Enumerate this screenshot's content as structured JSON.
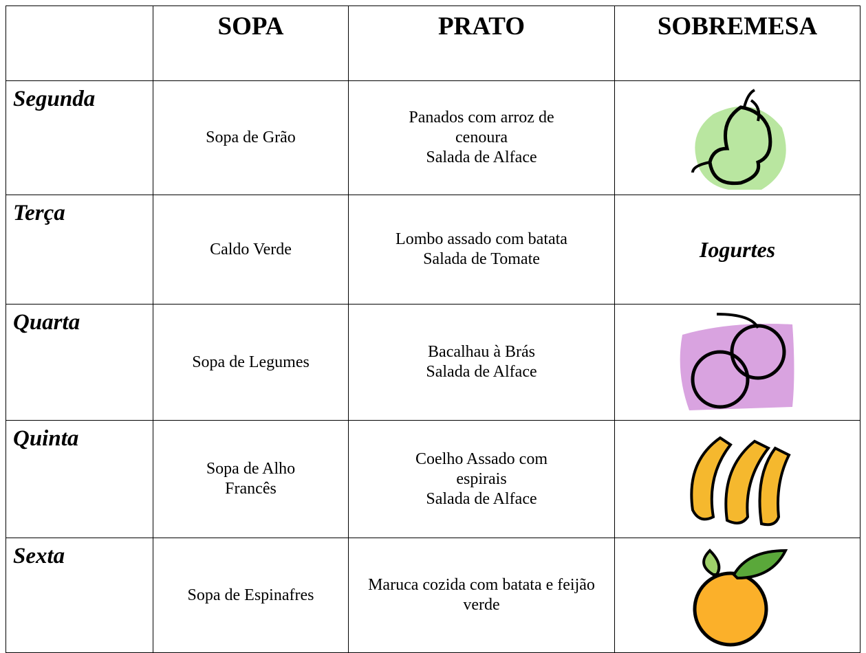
{
  "table": {
    "header": [
      "SOPA",
      "PRATO",
      "SOBREMESA"
    ],
    "rows": [
      {
        "day": "Segunda",
        "sopa": "Sopa de Grão",
        "prato": [
          "Panados com arroz de cenoura",
          "Salada de Alface"
        ]
      },
      {
        "day": "Terça",
        "sopa": "Caldo Verde",
        "prato": [
          "Lombo assado com batata",
          "Salada de Tomate"
        ],
        "sobremesa": "Iogurtes"
      },
      {
        "day": "Quarta",
        "sopa": "Sopa de Legumes",
        "prato": [
          "Bacalhau à Brás",
          "Salada de Alface"
        ]
      },
      {
        "day": "Quinta",
        "sopa": "Sopa de Alho Francês",
        "prato": [
          "Coelho Assado com espirais",
          "Salada de Alface"
        ]
      },
      {
        "day": "Sexta",
        "sopa": "Sopa de Espinafres",
        "prato": [
          "Maruca cozida com batata e feijão verde"
        ]
      }
    ]
  }
}
